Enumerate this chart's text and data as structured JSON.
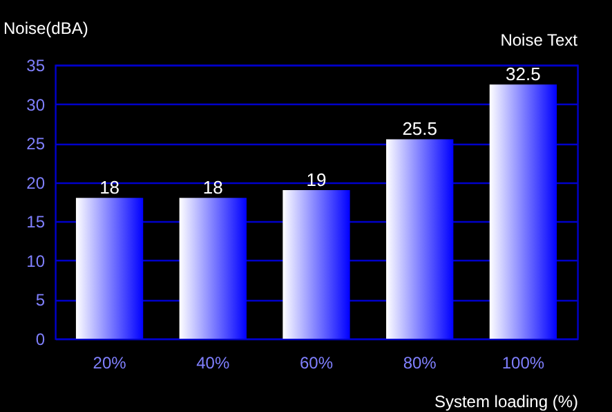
{
  "chart_data": {
    "type": "bar",
    "ylabel": "Noise(dBA)",
    "xlabel": "System loading (%)",
    "annotations": [
      "Noise Text"
    ],
    "categories": [
      "20%",
      "40%",
      "60%",
      "80%",
      "100%"
    ],
    "values": [
      18,
      18,
      19,
      25.5,
      32.5
    ],
    "color": "#0000ff",
    "ylim": [
      0,
      35
    ],
    "yticks": [
      0,
      5,
      10,
      15,
      20,
      25,
      30,
      35
    ],
    "grid": "y",
    "data_labels": true
  }
}
